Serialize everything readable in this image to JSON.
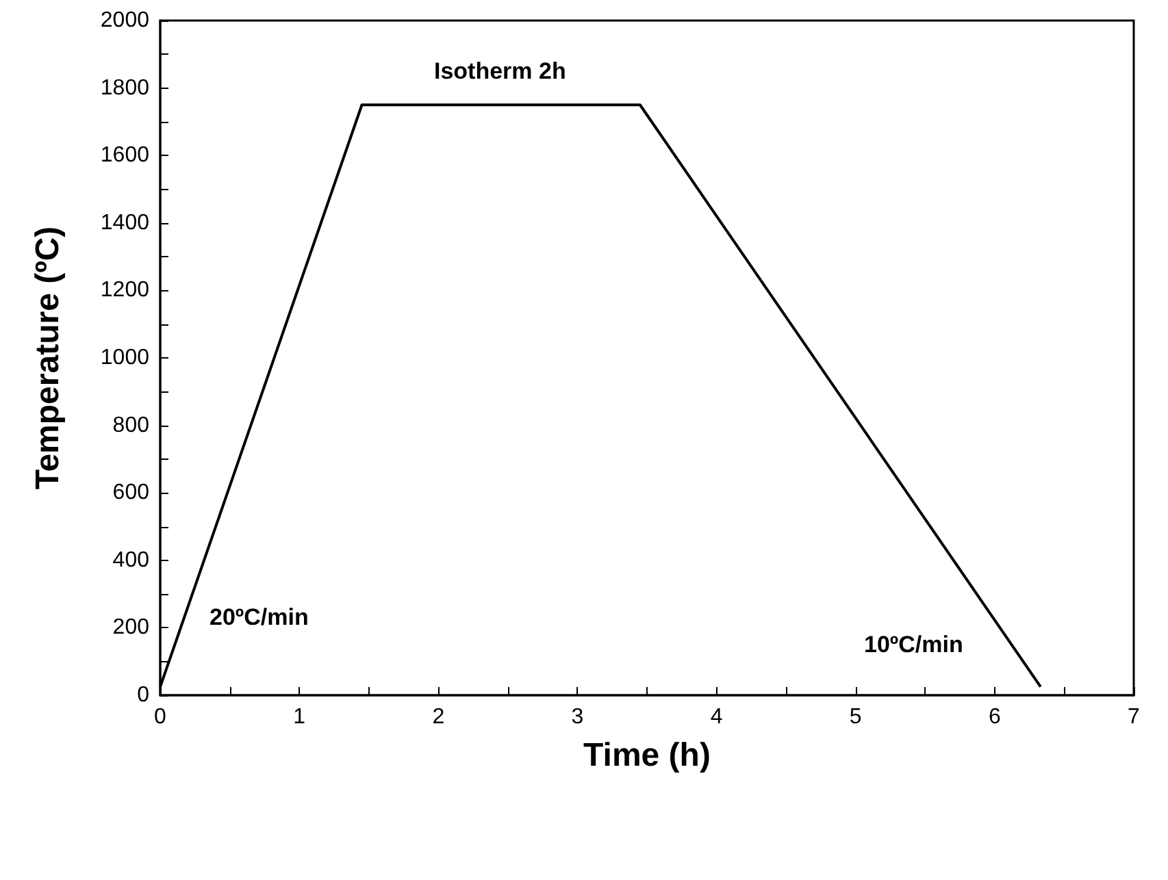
{
  "chart_data": {
    "type": "line",
    "xlabel": "Time (h)",
    "ylabel": "Temperature (ºC)",
    "x": [
      0,
      1.45,
      3.45,
      6.33
    ],
    "values": [
      25,
      1750,
      1750,
      25
    ],
    "color": "#000000",
    "xlim": [
      0,
      7
    ],
    "xticks": [
      0,
      {
        "value": 0.5,
        "label": null
      },
      1,
      {
        "value": 1.5,
        "label": null
      },
      2,
      {
        "value": 2.5,
        "label": null
      },
      3,
      {
        "value": 3.5,
        "label": null
      },
      4,
      {
        "value": 4.5,
        "label": null
      },
      5,
      {
        "value": 5.5,
        "label": null
      },
      6,
      {
        "value": 6.5,
        "label": null
      },
      7
    ],
    "ylim": [
      0,
      2000
    ],
    "yticks": [
      0,
      {
        "value": 100,
        "label": null
      },
      200,
      {
        "value": 300,
        "label": null
      },
      400,
      {
        "value": 500,
        "label": null
      },
      600,
      {
        "value": 700,
        "label": null
      },
      800,
      {
        "value": 900,
        "label": null
      },
      1000,
      {
        "value": 1100,
        "label": null
      },
      1200,
      {
        "value": 1300,
        "label": null
      },
      1400,
      {
        "value": 1500,
        "label": null
      },
      1600,
      {
        "value": 1700,
        "label": null
      },
      1800,
      {
        "value": 1900,
        "label": null
      },
      2000
    ],
    "annotations": [
      "20ºC/min",
      "Isotherm 2h",
      "10ºC/min"
    ],
    "grid": false,
    "marker": "none",
    "line_style": "solid"
  }
}
